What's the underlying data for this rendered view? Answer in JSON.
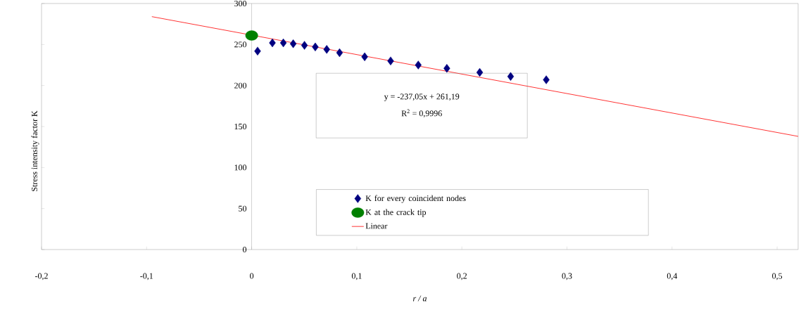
{
  "chart_data": {
    "type": "scatter",
    "xlabel": "r  /  a",
    "ylabel": "Stress intensity factor K",
    "xlim": [
      -0.2,
      0.52
    ],
    "ylim": [
      0,
      300
    ],
    "xticks": [
      {
        "value": -0.2,
        "label": "-0,2"
      },
      {
        "value": -0.1,
        "label": "-0,1"
      },
      {
        "value": 0,
        "label": "0"
      },
      {
        "value": 0.1,
        "label": "0,1"
      },
      {
        "value": 0.2,
        "label": "0,2"
      },
      {
        "value": 0.3,
        "label": "0,3"
      },
      {
        "value": 0.4,
        "label": "0,4"
      },
      {
        "value": 0.5,
        "label": "0,5"
      }
    ],
    "yticks": [
      0,
      50,
      100,
      150,
      200,
      250,
      300
    ],
    "grid": false,
    "legend": "bottom",
    "annotations": [
      "y = -237,05x + 261,19",
      "R$^{2}$ = 0,9996"
    ],
    "series": [
      {
        "name": "K for every coincident nodes",
        "marker": "diamond",
        "color": "#000080",
        "x": [
          0.0056,
          0.0197,
          0.0301,
          0.0395,
          0.0502,
          0.0605,
          0.0714,
          0.0836,
          0.1075,
          0.1322,
          0.1585,
          0.1857,
          0.217,
          0.2464,
          0.2803
        ],
        "values": [
          242,
          252,
          252,
          251,
          249,
          247,
          244,
          240,
          235,
          230,
          225,
          221,
          216,
          211,
          207
        ]
      },
      {
        "name": "K at the crack tip",
        "marker": "circle",
        "color": "#008000",
        "x": [
          0
        ],
        "values": [
          261
        ]
      },
      {
        "name": "Linear",
        "type": "line",
        "marker": "none",
        "line_style": "solid",
        "color": "#ff0000",
        "x": [
          -0.095,
          0.52
        ],
        "values": [
          284,
          138
        ]
      }
    ]
  }
}
